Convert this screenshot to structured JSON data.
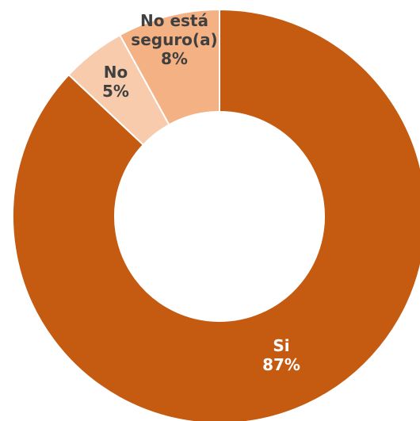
{
  "chart_data": {
    "type": "donut",
    "title": "",
    "categories": [
      "Si",
      "No",
      "No está seguro(a)"
    ],
    "values": [
      87,
      5,
      8
    ],
    "value_format": "percent",
    "colors": [
      "#C55A11",
      "#F8CBAD",
      "#F4B183"
    ],
    "legend": "none",
    "data_labels": [
      {
        "category_lines": [
          "Si"
        ],
        "value": "87%"
      },
      {
        "category_lines": [
          "No"
        ],
        "value": "5%"
      },
      {
        "category_lines": [
          "No está",
          "seguro(a)"
        ],
        "value": "8%"
      }
    ]
  }
}
